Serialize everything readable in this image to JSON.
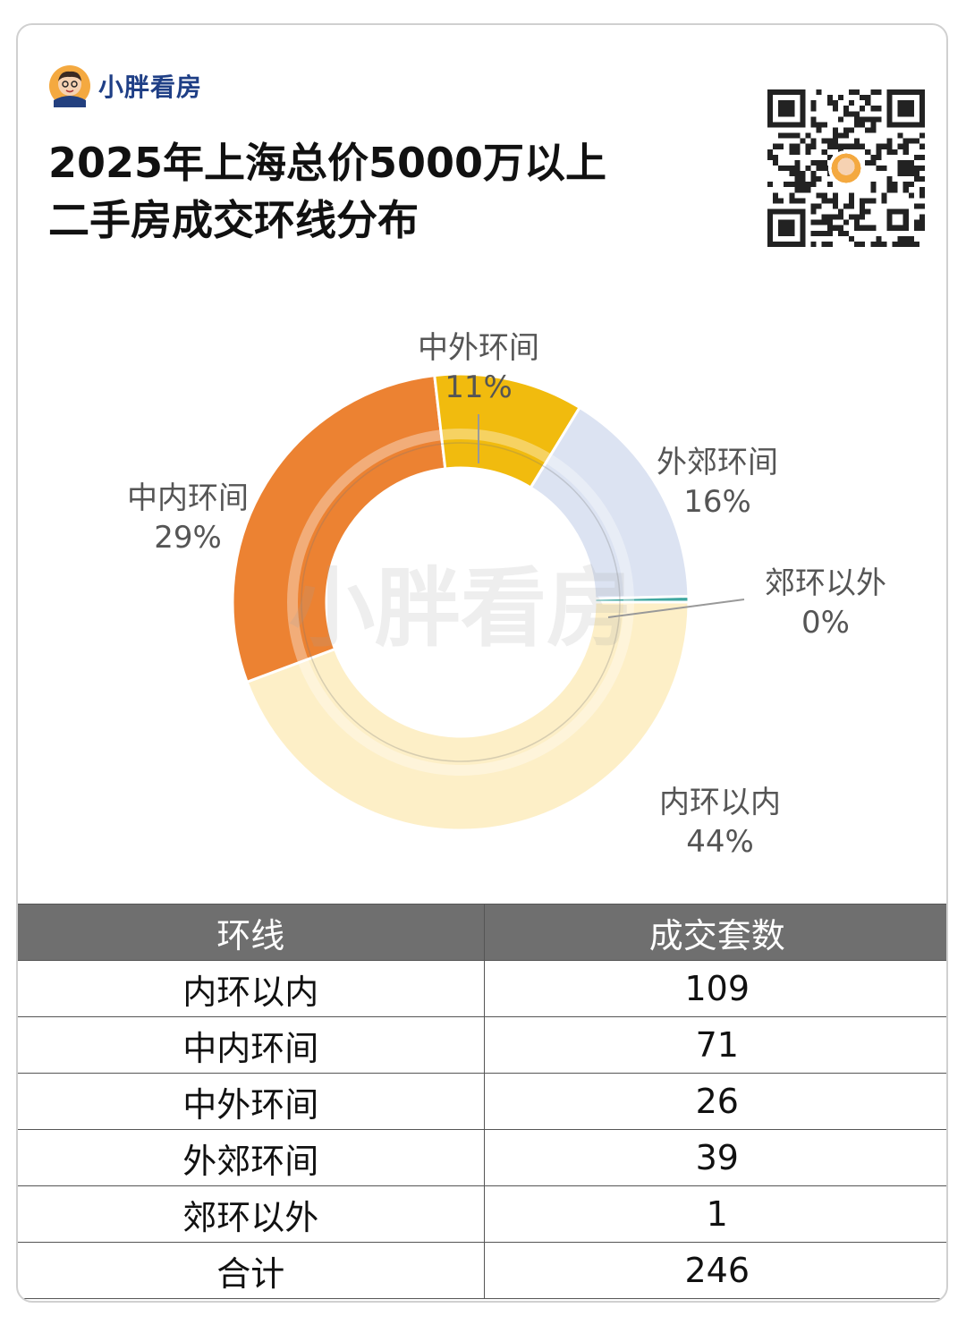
{
  "brand": {
    "name": "小胖看房",
    "watermark": "小胖看房"
  },
  "title_lines": [
    "2025年上海总价5000万以上",
    "二手房成交环线分布"
  ],
  "colors": {
    "inner": "#FDEFC7",
    "mid_inner": "#EC8232",
    "mid_outer": "#F1BB0E",
    "outer_suburb": "#DCE3F2",
    "suburb_out": "#3FA7A0"
  },
  "chart_data": {
    "type": "pie",
    "style": "donut",
    "segments": [
      {
        "name": "内环以内",
        "value": 109,
        "percent_label": "44%",
        "color": "#FDEFC7"
      },
      {
        "name": "中内环间",
        "value": 71,
        "percent_label": "29%",
        "color": "#EC8232"
      },
      {
        "name": "中外环间",
        "value": 26,
        "percent_label": "11%",
        "color": "#F1BB0E"
      },
      {
        "name": "外郊环间",
        "value": 39,
        "percent_label": "16%",
        "color": "#DCE3F2"
      },
      {
        "name": "郊环以外",
        "value": 1,
        "percent_label": "0%",
        "color": "#3FA7A0"
      }
    ],
    "start_angle_deg": 90,
    "direction": "clockwise"
  },
  "table": {
    "headers": [
      "环线",
      "成交套数"
    ],
    "rows": [
      [
        "内环以内",
        "109"
      ],
      [
        "中内环间",
        "71"
      ],
      [
        "中外环间",
        "26"
      ],
      [
        "外郊环间",
        "39"
      ],
      [
        "郊环以外",
        "1"
      ],
      [
        "合计",
        "246"
      ]
    ]
  }
}
